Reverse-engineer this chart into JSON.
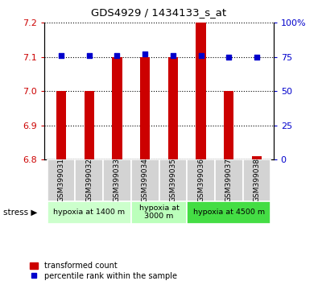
{
  "title": "GDS4929 / 1434133_s_at",
  "samples": [
    "GSM399031",
    "GSM399032",
    "GSM399033",
    "GSM399034",
    "GSM399035",
    "GSM399036",
    "GSM399037",
    "GSM399038"
  ],
  "transformed_counts": [
    7.0,
    7.0,
    7.1,
    7.1,
    7.1,
    7.2,
    7.0,
    6.81
  ],
  "percentile_ranks": [
    76,
    76,
    76,
    77,
    76,
    76,
    75,
    75
  ],
  "ylim_left": [
    6.8,
    7.2
  ],
  "ylim_right": [
    0,
    100
  ],
  "yticks_left": [
    6.8,
    6.9,
    7.0,
    7.1,
    7.2
  ],
  "yticks_right": [
    0,
    25,
    50,
    75,
    100
  ],
  "bar_color": "#CC0000",
  "dot_color": "#0000CC",
  "bar_bottom": 6.8,
  "stress_groups": [
    {
      "label": "hypoxia at 1400 m",
      "start": 0,
      "end": 3,
      "color": "#ccffcc"
    },
    {
      "label": "hypoxia at\n3000 m",
      "start": 3,
      "end": 5,
      "color": "#bbffbb"
    },
    {
      "label": "hypoxia at 4500 m",
      "start": 5,
      "end": 8,
      "color": "#44dd44"
    }
  ],
  "legend_items": [
    {
      "color": "#CC0000",
      "label": "transformed count"
    },
    {
      "color": "#0000CC",
      "label": "percentile rank within the sample"
    }
  ],
  "bg_color": "#ffffff",
  "tick_label_color_left": "#CC0000",
  "tick_label_color_right": "#0000CC",
  "stress_label": "stress"
}
